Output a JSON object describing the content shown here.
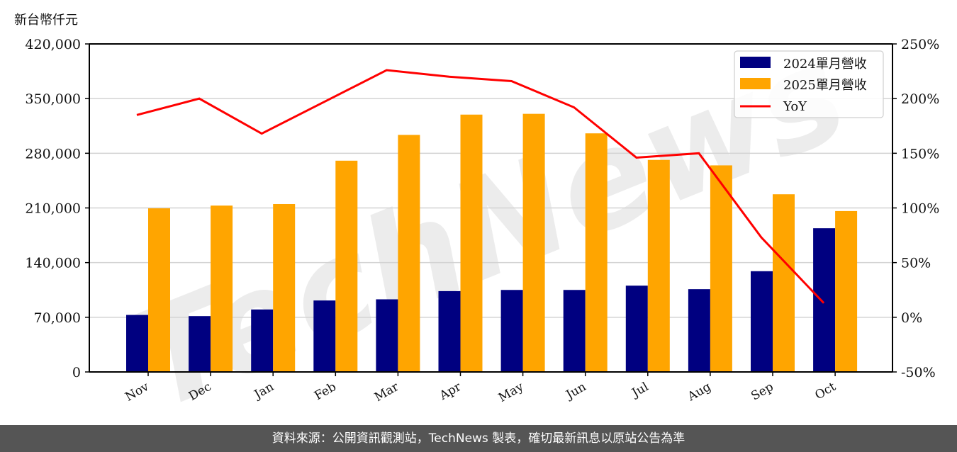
{
  "unit_label": "新台幣仟元",
  "footer": {
    "source_text": "資料來源：公開資訊觀測站，TechNews 製表，確切最新訊息以原站公告為準"
  },
  "watermark": "TechNews",
  "colors": {
    "series_2024": "#000080",
    "series_2025": "#FFA500",
    "yoy": "#FF0000",
    "grid": "#D3D3D3",
    "footer_bg": "#555555"
  },
  "chart_data": {
    "type": "bar",
    "title": "",
    "xlabel": "",
    "ylabel": "新台幣仟元",
    "y2label": "",
    "categories": [
      "Nov",
      "Dec",
      "Jan",
      "Feb",
      "Mar",
      "Apr",
      "May",
      "Jun",
      "Jul",
      "Aug",
      "Sep",
      "Oct"
    ],
    "series": [
      {
        "name": "2024單月營收",
        "type": "bar",
        "axis": "left",
        "values": [
          73000,
          71500,
          80000,
          91500,
          93000,
          103500,
          105000,
          105000,
          110500,
          106000,
          129000,
          184000
        ]
      },
      {
        "name": "2025單月營收",
        "type": "bar",
        "axis": "left",
        "values": [
          209500,
          213000,
          215000,
          270500,
          303500,
          329500,
          330500,
          305500,
          271500,
          264500,
          227500,
          206000
        ]
      },
      {
        "name": "YoY",
        "type": "line",
        "axis": "right",
        "unit": "%",
        "values": [
          185,
          200,
          168,
          197,
          226,
          220,
          216,
          192,
          146,
          150,
          73,
          13
        ]
      }
    ],
    "ylim": [
      0,
      420000
    ],
    "yticks": [
      "0",
      "70,000",
      "140,000",
      "210,000",
      "280,000",
      "350,000",
      "420,000"
    ],
    "y2lim": [
      -50,
      250
    ],
    "y2ticks": [
      "-50%",
      "0%",
      "50%",
      "100%",
      "150%",
      "200%",
      "250%"
    ],
    "grid": true,
    "legend_position": "upper right",
    "legend": [
      "2024單月營收",
      "2025單月營收",
      "YoY"
    ]
  }
}
